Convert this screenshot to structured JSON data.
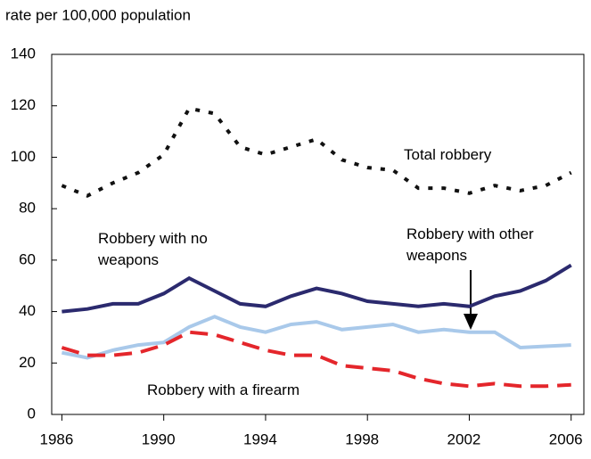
{
  "chart_data": {
    "type": "line",
    "title": "rate per 100,000 population",
    "x": [
      1986,
      1987,
      1988,
      1989,
      1990,
      1991,
      1992,
      1993,
      1994,
      1995,
      1996,
      1997,
      1998,
      1999,
      2000,
      2001,
      2002,
      2003,
      2004,
      2005,
      2006
    ],
    "xlim": [
      1985.6,
      2006.5
    ],
    "xticks": [
      1986,
      1990,
      1994,
      1998,
      2002,
      2006
    ],
    "ylim": [
      0,
      140
    ],
    "yticks": [
      0,
      20,
      40,
      60,
      80,
      100,
      120,
      140
    ],
    "series": [
      {
        "name": "Total robbery",
        "color": "#111111",
        "style": "dotted",
        "values": [
          89,
          85,
          90,
          94,
          101,
          119,
          117,
          104,
          101,
          104,
          107,
          99,
          96,
          95,
          88,
          88,
          86,
          89,
          87,
          89,
          94
        ]
      },
      {
        "name": "Robbery with no weapons",
        "color": "#2b2a6e",
        "style": "solid",
        "values": [
          40,
          41,
          43,
          43,
          47,
          53,
          48,
          43,
          42,
          46,
          49,
          47,
          44,
          43,
          42,
          43,
          42,
          46,
          48,
          52,
          58
        ]
      },
      {
        "name": "Robbery with other weapons",
        "color": "#a9c9ea",
        "style": "solid",
        "values": [
          24,
          22,
          25,
          27,
          28,
          34,
          38,
          34,
          32,
          35,
          36,
          33,
          34,
          35,
          32,
          33,
          32,
          32,
          26,
          26.5,
          27
        ]
      },
      {
        "name": "Robbery with a firearm",
        "color": "#e4262b",
        "style": "dashed",
        "values": [
          26,
          23,
          23,
          24,
          27,
          32,
          31,
          28,
          25,
          23,
          23,
          19,
          18,
          17,
          14,
          12,
          11,
          12,
          11,
          11,
          11.5
        ]
      }
    ]
  }
}
